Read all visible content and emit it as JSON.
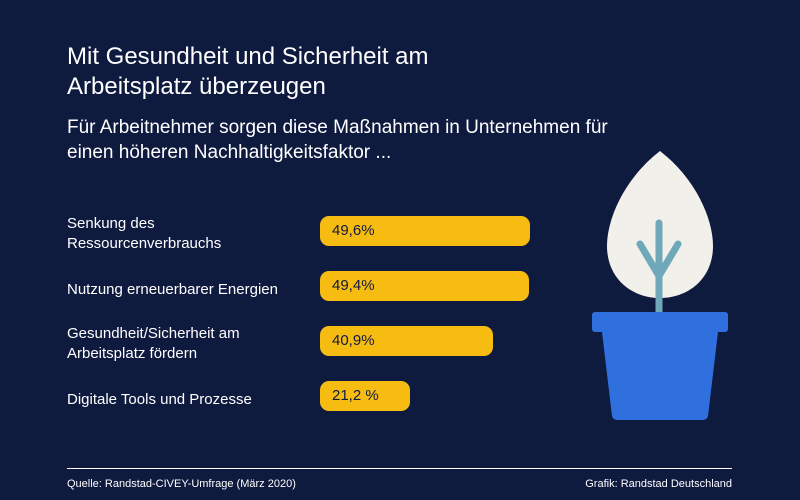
{
  "title": "Mit Gesundheit und Sicherheit am Arbeitsplatz überzeugen",
  "subtitle": "Für Arbeitnehmer sorgen diese Maßnahmen in Unternehmen für einen höheren Nachhaltigkeitsfaktor ...",
  "colors": {
    "background": "#0f1a3f",
    "bar": "#f7bc12",
    "leaf": "#f2f0ea",
    "stem": "#6fa8b8",
    "pot": "#2f6fde"
  },
  "chart_data": {
    "type": "bar",
    "orientation": "horizontal",
    "categories": [
      "Senkung des Ressourcenverbrauchs",
      "Nutzung erneuerbarer Energien",
      "Gesundheit/Sicherheit am Arbeitsplatz fördern",
      "Digitale Tools und Prozesse"
    ],
    "values": [
      49.6,
      49.4,
      40.9,
      21.2
    ],
    "value_labels": [
      "49,6%",
      "49,4%",
      "40,9%",
      "21,2 %"
    ],
    "unit": "%"
  },
  "footer": {
    "source": "Quelle: Randstad-CIVEY-Umfrage (März 2020)",
    "credit": "Grafik: Randstad Deutschland"
  },
  "illustration": "potted-plant-icon"
}
